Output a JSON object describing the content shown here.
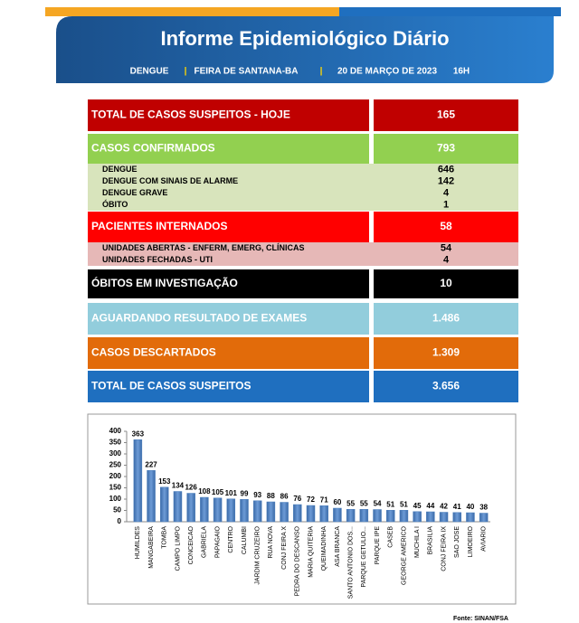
{
  "header": {
    "title": "Informe Epidemiológico Diário",
    "info": [
      "DENGUE",
      "|",
      "FEIRA DE SANTANA-BA",
      "|",
      "20 DE MARÇO DE 2023",
      "16H"
    ]
  },
  "table": {
    "rows": [
      {
        "label": "TOTAL DE CASOS SUSPEITOS - HOJE",
        "value": 165,
        "color": "#c00000"
      },
      {
        "label": "CASOS CONFIRMADOS",
        "value": 793,
        "color": "#92d050",
        "sub_color": "#d8e4bc",
        "sub": [
          {
            "label": "DENGUE",
            "value": 646
          },
          {
            "label": "DENGUE COM SINAIS DE ALARME",
            "value": 142
          },
          {
            "label": "DENGUE GRAVE",
            "value": 4
          },
          {
            "label": "ÓBITO",
            "value": 1
          }
        ]
      },
      {
        "label": "PACIENTES INTERNADOS",
        "value": 58,
        "color": "#ff0000",
        "sub_color": "#e6b8b7",
        "sub": [
          {
            "label": "UNIDADES ABERTAS - ENFERM, EMERG, CLÍNICAS",
            "value": 54
          },
          {
            "label": "UNIDADES FECHADAS - UTI",
            "value": 4
          }
        ]
      },
      {
        "label": "ÓBITOS EM INVESTIGAÇÃO",
        "value": 10,
        "color": "#000000"
      },
      {
        "label": "AGUARDANDO RESULTADO DE EXAMES",
        "value": "1.486",
        "color": "#92cddc"
      },
      {
        "label": "CASOS DESCARTADOS",
        "value": "1.309",
        "color": "#e26b0a"
      },
      {
        "label": "TOTAL DE CASOS SUSPEITOS",
        "value": "3.656",
        "color": "#1f6fbf"
      }
    ]
  },
  "chart_data": {
    "type": "bar",
    "color": "#4f81bd",
    "categories": [
      "HUMILDES",
      "MANGABEIRA",
      "TOMBA",
      "CAMPO LIMPO",
      "CONCEICAO",
      "GABRIELA",
      "PAPAGAIO",
      "CENTRO",
      "CALUMBI",
      "JARDIM CRUZEIRO",
      "RUA NOVA",
      "CONJ FEIRA X",
      "PEDRA DO DESCANSO",
      "MARIA QUITERIA",
      "QUEIMADINHA",
      "ASA BRANCA",
      "SANTO ANTONIO DOS...",
      "PARQUE GETULIO...",
      "PARQUE IPE",
      "CASEB",
      "GEORGE AMERICO",
      "MUCHILA I",
      "BRASILIA",
      "CONJ FEIRA IX",
      "SAO JOSE",
      "LIMOEIRO",
      "AVIARIO"
    ],
    "values": [
      363,
      227,
      153,
      134,
      126,
      108,
      105,
      101,
      99,
      93,
      88,
      86,
      76,
      72,
      71,
      60,
      55,
      55,
      54,
      51,
      51,
      45,
      44,
      42,
      41,
      40,
      38
    ],
    "ylim": [
      0,
      400
    ],
    "yticks": [
      0,
      50,
      100,
      150,
      200,
      250,
      300,
      350,
      400
    ]
  },
  "source": "Fonte: SINAN/FSA"
}
